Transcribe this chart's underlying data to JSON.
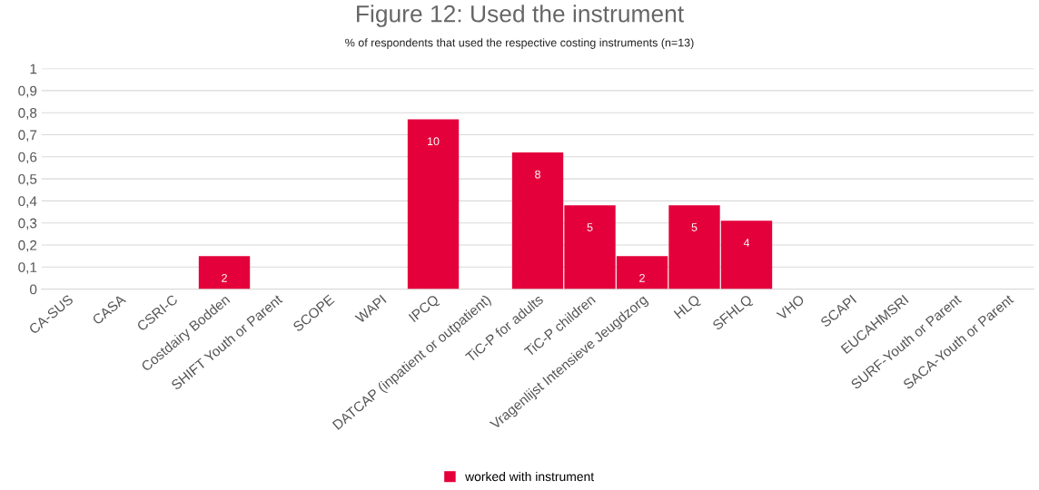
{
  "chart_data": {
    "type": "bar",
    "title": "Figure 12: Used the instrument",
    "subtitle": "% of respondents that used the respective costing instruments (n=13)",
    "categories": [
      "CA-SUS",
      "CASA",
      "CSRI-C",
      "Costdairy Bodden",
      "SHIFT Youth or Parent",
      "SCOPE",
      "WAPI",
      "IPCQ",
      "DATCAP (inpatient or outpatient)",
      "TiC-P for adults",
      "TiC-P children",
      "Vragenlijst Intensieve Jeugdzorg",
      "HLQ",
      "SFHLQ",
      "VHO",
      "SCAPI",
      "EUCAHMSRI",
      "SURF-Youth or Parent",
      "SACA-Youth or Parent"
    ],
    "series": [
      {
        "name": "worked with instrument",
        "color": "#e4003b",
        "values": [
          0,
          0,
          0,
          0.15,
          0,
          0,
          0,
          0.77,
          0,
          0.62,
          0.38,
          0.15,
          0.38,
          0.31,
          0,
          0,
          0,
          0,
          0
        ]
      }
    ],
    "annotations": [
      {
        "text": "2",
        "x": "Costdairy Bodden",
        "y": 0.15
      },
      {
        "text": "10",
        "x": "IPCQ",
        "y": 0.77
      },
      {
        "text": "8",
        "x": "TiC-P for adults",
        "y": 0.62
      },
      {
        "text": "5",
        "x": "TiC-P children",
        "y": 0.38
      },
      {
        "text": "2",
        "x": "Vragenlijst Intensieve Jeugdzorg",
        "y": 0.15
      },
      {
        "text": "5",
        "x": "HLQ",
        "y": 0.38
      },
      {
        "text": "4",
        "x": "SFHLQ",
        "y": 0.31
      }
    ],
    "ylim": [
      0,
      1
    ],
    "yticks": [
      0,
      {
        "value": 0.1,
        "label": "0,1"
      },
      {
        "value": 0.2,
        "label": "0,2"
      },
      {
        "value": 0.3,
        "label": "0,3"
      },
      {
        "value": 0.4,
        "label": "0,4"
      },
      {
        "value": 0.5,
        "label": "0,5"
      },
      {
        "value": 0.6,
        "label": "0,6"
      },
      {
        "value": 0.7,
        "label": "0,7"
      },
      {
        "value": 0.8,
        "label": "0,8"
      },
      {
        "value": 0.9,
        "label": "0,9"
      },
      1
    ],
    "grid": "y",
    "legend": "bottom"
  }
}
